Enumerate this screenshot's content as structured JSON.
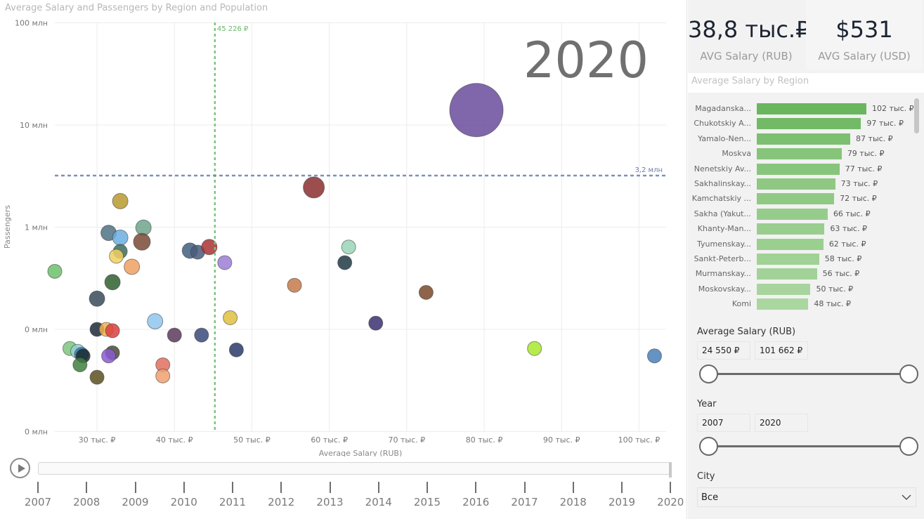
{
  "chart": {
    "title": "Average Salary and Passengers by Region and Population",
    "year_watermark": "2020",
    "x_axis_title": "Average Salary (RUB)",
    "y_axis_title": "Passengers",
    "x_ticks": [
      "30 тыс. ₽",
      "40 тыс. ₽",
      "50 тыс. ₽",
      "60 тыс. ₽",
      "70 тыс. ₽",
      "80 тыс. ₽",
      "90 тыс. ₽",
      "100 тыс. ₽"
    ],
    "y_ticks": [
      "100 млн",
      "10 млн",
      "1 млн",
      "0 млн",
      "0 млн"
    ],
    "ref_x_label": "45 226 ₽",
    "ref_y_label": "3,2 млн"
  },
  "chart_data": {
    "type": "scatter",
    "title": "Average Salary and Passengers by Region and Population",
    "xlabel": "Average Salary (RUB)",
    "ylabel": "Passengers",
    "x_scale": "linear",
    "y_scale": "log",
    "xlim": [
      24550,
      103500
    ],
    "x_ticks": [
      30000,
      40000,
      50000,
      60000,
      70000,
      80000,
      90000,
      100000
    ],
    "y_ticks": [
      100000000,
      10000000,
      1000000,
      100000,
      10000
    ],
    "reference_lines": [
      {
        "axis": "x",
        "value": 45226,
        "label": "45 226 ₽"
      },
      {
        "axis": "y",
        "value": 3200000,
        "label": "3,2 млн"
      }
    ],
    "points": [
      {
        "x": 79000,
        "y": 14000000,
        "size": 38,
        "color": "#6a4c9c"
      },
      {
        "x": 58000,
        "y": 2450000,
        "size": 15,
        "color": "#8b2f2f"
      },
      {
        "x": 33000,
        "y": 1800000,
        "size": 11,
        "color": "#b89a2e"
      },
      {
        "x": 36000,
        "y": 990000,
        "size": 11,
        "color": "#6fa58c"
      },
      {
        "x": 31500,
        "y": 880000,
        "size": 11,
        "color": "#4f7283"
      },
      {
        "x": 33000,
        "y": 790000,
        "size": 11,
        "color": "#6aaee0"
      },
      {
        "x": 35800,
        "y": 720000,
        "size": 12,
        "color": "#7a4a36"
      },
      {
        "x": 33000,
        "y": 580000,
        "size": 10,
        "color": "#3f6b5a"
      },
      {
        "x": 42000,
        "y": 590000,
        "size": 11,
        "color": "#3f5f7f"
      },
      {
        "x": 43000,
        "y": 570000,
        "size": 10,
        "color": "#4a5a7a"
      },
      {
        "x": 44500,
        "y": 640000,
        "size": 11,
        "color": "#a83232"
      },
      {
        "x": 62500,
        "y": 640000,
        "size": 10,
        "color": "#9ad5b8"
      },
      {
        "x": 32500,
        "y": 520000,
        "size": 10,
        "color": "#f0d060"
      },
      {
        "x": 46500,
        "y": 450000,
        "size": 10,
        "color": "#9b7ed6"
      },
      {
        "x": 62000,
        "y": 450000,
        "size": 10,
        "color": "#1f3a44"
      },
      {
        "x": 34500,
        "y": 410000,
        "size": 11,
        "color": "#f0a060"
      },
      {
        "x": 24550,
        "y": 370000,
        "size": 10,
        "color": "#6cbf6c"
      },
      {
        "x": 32000,
        "y": 290000,
        "size": 11,
        "color": "#2f5f2f"
      },
      {
        "x": 55500,
        "y": 270000,
        "size": 10,
        "color": "#c47a4a"
      },
      {
        "x": 72500,
        "y": 230000,
        "size": 10,
        "color": "#7a4a2a"
      },
      {
        "x": 30000,
        "y": 200000,
        "size": 11,
        "color": "#3a4a5a"
      },
      {
        "x": 37500,
        "y": 120000,
        "size": 11,
        "color": "#8ec5ef"
      },
      {
        "x": 47200,
        "y": 130000,
        "size": 10,
        "color": "#e0c040"
      },
      {
        "x": 66000,
        "y": 115000,
        "size": 10,
        "color": "#3a3070"
      },
      {
        "x": 30000,
        "y": 100000,
        "size": 10,
        "color": "#1f2a3a"
      },
      {
        "x": 31200,
        "y": 100000,
        "size": 10,
        "color": "#f0b050"
      },
      {
        "x": 32000,
        "y": 97000,
        "size": 10,
        "color": "#d84040"
      },
      {
        "x": 40000,
        "y": 88000,
        "size": 10,
        "color": "#5a3a5a"
      },
      {
        "x": 43500,
        "y": 88000,
        "size": 10,
        "color": "#3a4a7a"
      },
      {
        "x": 26500,
        "y": 65000,
        "size": 10,
        "color": "#7fc47f"
      },
      {
        "x": 27500,
        "y": 61000,
        "size": 10,
        "color": "#8fd0d0"
      },
      {
        "x": 28000,
        "y": 57000,
        "size": 10,
        "color": "#3a7ac0"
      },
      {
        "x": 28200,
        "y": 55000,
        "size": 10,
        "color": "#1a2a2a"
      },
      {
        "x": 32000,
        "y": 59000,
        "size": 10,
        "color": "#4a4a3a"
      },
      {
        "x": 31500,
        "y": 55000,
        "size": 10,
        "color": "#8a5ad0"
      },
      {
        "x": 48000,
        "y": 63000,
        "size": 10,
        "color": "#2a3a6a"
      },
      {
        "x": 86500,
        "y": 65000,
        "size": 10,
        "color": "#a8e830"
      },
      {
        "x": 102000,
        "y": 55000,
        "size": 10,
        "color": "#4a80b8"
      },
      {
        "x": 27800,
        "y": 45000,
        "size": 10,
        "color": "#3f7f3f"
      },
      {
        "x": 38500,
        "y": 45000,
        "size": 10,
        "color": "#e07060"
      },
      {
        "x": 38500,
        "y": 35000,
        "size": 10,
        "color": "#f0a070"
      },
      {
        "x": 30000,
        "y": 34000,
        "size": 10,
        "color": "#5a5020"
      }
    ]
  },
  "timeline": {
    "years": [
      "2007",
      "2008",
      "2009",
      "2010",
      "2011",
      "2012",
      "2013",
      "2014",
      "2015",
      "2016",
      "2017",
      "2018",
      "2019",
      "2020"
    ]
  },
  "kpis": [
    {
      "value": "38,8 тыс.₽",
      "label": "AVG Salary (RUB)"
    },
    {
      "value": "$531",
      "label": "AVG Salary (USD)"
    }
  ],
  "bar_chart": {
    "title": "Average Salary by Region",
    "max": 102,
    "rows": [
      {
        "name": "Magadanska...",
        "value": 102,
        "label": "102 тыс. ₽",
        "color": "#6ab65e"
      },
      {
        "name": "Chukotskiy A...",
        "value": 97,
        "label": "97 тыс. ₽",
        "color": "#72ba66"
      },
      {
        "name": "Yamalo-Nen...",
        "value": 87,
        "label": "87 тыс. ₽",
        "color": "#7cbf70"
      },
      {
        "name": "Moskva",
        "value": 79,
        "label": "79 тыс. ₽",
        "color": "#86c47a"
      },
      {
        "name": "Nenetskiy Av...",
        "value": 77,
        "label": "77 тыс. ₽",
        "color": "#88c57c"
      },
      {
        "name": "Sakhalinskay...",
        "value": 73,
        "label": "73 тыс. ₽",
        "color": "#8fc883"
      },
      {
        "name": "Kamchatskiy ...",
        "value": 72,
        "label": "72 тыс. ₽",
        "color": "#90c984"
      },
      {
        "name": "Sakha (Yakut...",
        "value": 66,
        "label": "66 тыс. ₽",
        "color": "#96cc8b"
      },
      {
        "name": "Khanty-Man...",
        "value": 63,
        "label": "63 тыс. ₽",
        "color": "#99ce8e"
      },
      {
        "name": "Tyumenskay...",
        "value": 62,
        "label": "62 тыс. ₽",
        "color": "#9bcf90"
      },
      {
        "name": "Sankt-Peterb...",
        "value": 58,
        "label": "58 тыс. ₽",
        "color": "#a0d195"
      },
      {
        "name": "Murmanskay...",
        "value": 56,
        "label": "56 тыс. ₽",
        "color": "#a2d297"
      },
      {
        "name": "Moskovskay...",
        "value": 50,
        "label": "50 тыс. ₽",
        "color": "#a8d59e"
      },
      {
        "name": "Komi",
        "value": 48,
        "label": "48 тыс. ₽",
        "color": "#aad6a0"
      }
    ]
  },
  "filters": {
    "salary": {
      "label": "Average Salary (RUB)",
      "min": "24 550 ₽",
      "max": "101 662 ₽"
    },
    "year": {
      "label": "Year",
      "min": "2007",
      "max": "2020"
    },
    "city": {
      "label": "City",
      "value": "Все"
    }
  }
}
